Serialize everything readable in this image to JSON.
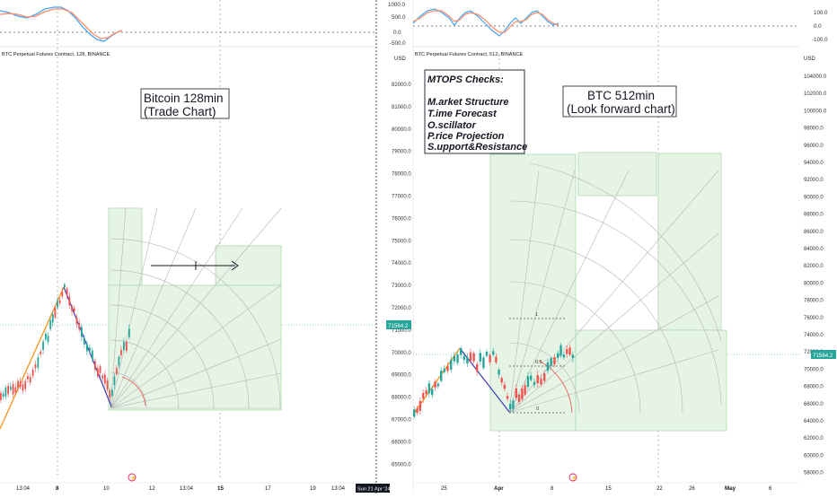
{
  "colors": {
    "up": "#26a69a",
    "down": "#ef5350",
    "trend_up": "#f7931a",
    "trend_down": "#3b3bb5",
    "fan_grid": "#bdbdbd",
    "box_fill": "#e6f4e6",
    "box_stroke": "#a5d6a7",
    "price_tag": "#26a69a",
    "osc_blue": "#42a5f5",
    "osc_orange": "#ff8a65"
  },
  "left_panel": {
    "header": "BTC Perpetual Futures Contract, 128, BINANCE",
    "currency": "USD",
    "annotation_line1": "Bitcoin 128min",
    "annotation_line2": "(Trade Chart)",
    "osc_ticks": [
      "1000.0",
      "500.0",
      "0.0",
      "-500.0"
    ],
    "price_ticks": [
      "82000.0",
      "81000.0",
      "80000.0",
      "79000.0",
      "78000.0",
      "77000.0",
      "76000.0",
      "75000.0",
      "74000.0",
      "73000.0",
      "72000.0",
      "71000.0",
      "70000.0",
      "69000.0",
      "68000.0",
      "67000.0",
      "66000.0",
      "65000.0"
    ],
    "price_tag": "71564.2",
    "time_ticks": [
      "13:04",
      "8",
      "10",
      "12",
      "13:04",
      "15",
      "17",
      "19",
      "13:04"
    ],
    "crosshair_label": "Sun 21 Apr '24"
  },
  "right_panel": {
    "header": "BTC Perpetual Futures Contract, 512, BINANCE",
    "currency": "USD",
    "annotation_line1": "BTC 512min",
    "annotation_line2": "(Look forward chart)",
    "mtops": {
      "title": "MTOPS Checks:",
      "lines": [
        "M.arket Structure",
        "T.ime Forecast",
        "O.scillator",
        "P.rice Projection",
        "S.upport&Resistance"
      ]
    },
    "osc_ticks": [
      "100.0",
      "0.0",
      "-100.0"
    ],
    "price_ticks": [
      "104000.0",
      "102000.0",
      "100000.0",
      "98000.0",
      "96000.0",
      "94000.0",
      "92000.0",
      "90000.0",
      "88000.0",
      "86000.0",
      "84000.0",
      "82000.0",
      "80000.0",
      "78000.0",
      "76000.0",
      "74000.0",
      "72000.0",
      "70000.0",
      "68000.0",
      "66000.0",
      "64000.0",
      "62000.0",
      "60000.0",
      "58000.0"
    ],
    "price_tag": "71564.2",
    "time_ticks": [
      "25",
      "Apr",
      "8",
      "15",
      "22",
      "26",
      "May",
      "6"
    ],
    "fib_labels": [
      "1",
      "0.5",
      "0"
    ]
  }
}
